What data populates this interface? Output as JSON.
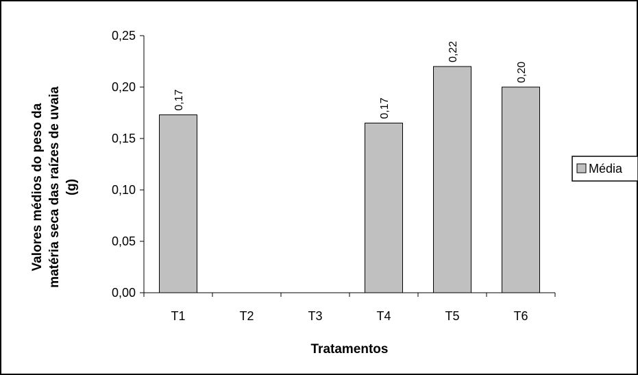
{
  "chart_data": {
    "type": "bar",
    "categories": [
      "T1",
      "T2",
      "T3",
      "T4",
      "T5",
      "T6"
    ],
    "series": [
      {
        "name": "Média",
        "values": [
          0.173,
          null,
          null,
          0.165,
          0.22,
          0.2
        ],
        "data_labels": [
          "0,17",
          "",
          "",
          "0,17",
          "0,22",
          "0,20"
        ],
        "color": "#c0c0c0"
      }
    ],
    "xlabel": "Tratamentos",
    "ylabel_lines": [
      "Valores médios do peso da",
      "matéria seca das raízes de uvaia",
      "(g)"
    ],
    "ylim": [
      0,
      0.25
    ],
    "yticks": [
      0,
      0.05,
      0.1,
      0.15,
      0.2,
      0.25
    ],
    "ytick_labels": [
      "0,00",
      "0,05",
      "0,10",
      "0,15",
      "0,20",
      "0,25"
    ],
    "grid": false,
    "legend_position": "right"
  }
}
